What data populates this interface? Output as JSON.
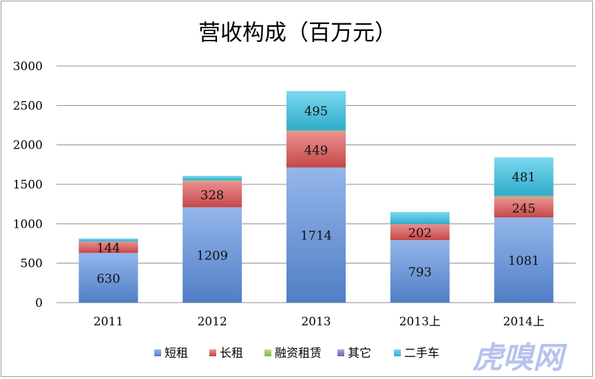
{
  "chart_data": {
    "type": "bar",
    "stacked": true,
    "title": "营收构成（百万元）",
    "categories": [
      "2011",
      "2012",
      "2013",
      "2013上",
      "2014上"
    ],
    "ylim": [
      0,
      3000
    ],
    "yticks": [
      0,
      500,
      1000,
      1500,
      2000,
      2500,
      3000
    ],
    "grid": true,
    "legend_position": "bottom",
    "series": [
      {
        "name": "短租",
        "color": "#5b8fe0",
        "values": [
          630,
          1209,
          1714,
          793,
          1081
        ],
        "labels": [
          "630",
          "1209",
          "1714",
          "793",
          "1081"
        ]
      },
      {
        "name": "长租",
        "color": "#e05252",
        "values": [
          144,
          328,
          449,
          202,
          245
        ],
        "labels": [
          "144",
          "328",
          "449",
          "202",
          "245"
        ]
      },
      {
        "name": "融资租赁",
        "color": "#9ccf45",
        "values": [
          0,
          10,
          15,
          0,
          20
        ],
        "labels": [
          "",
          "",
          "",
          "",
          ""
        ]
      },
      {
        "name": "其它",
        "color": "#8b6fc4",
        "values": [
          0,
          5,
          10,
          0,
          15
        ],
        "labels": [
          "",
          "",
          "",
          "",
          ""
        ]
      },
      {
        "name": "二手车",
        "color": "#35c3e6",
        "values": [
          40,
          55,
          495,
          155,
          481
        ],
        "labels": [
          "",
          "",
          "495",
          "",
          "481"
        ]
      }
    ]
  },
  "watermark": "虎嗅网"
}
